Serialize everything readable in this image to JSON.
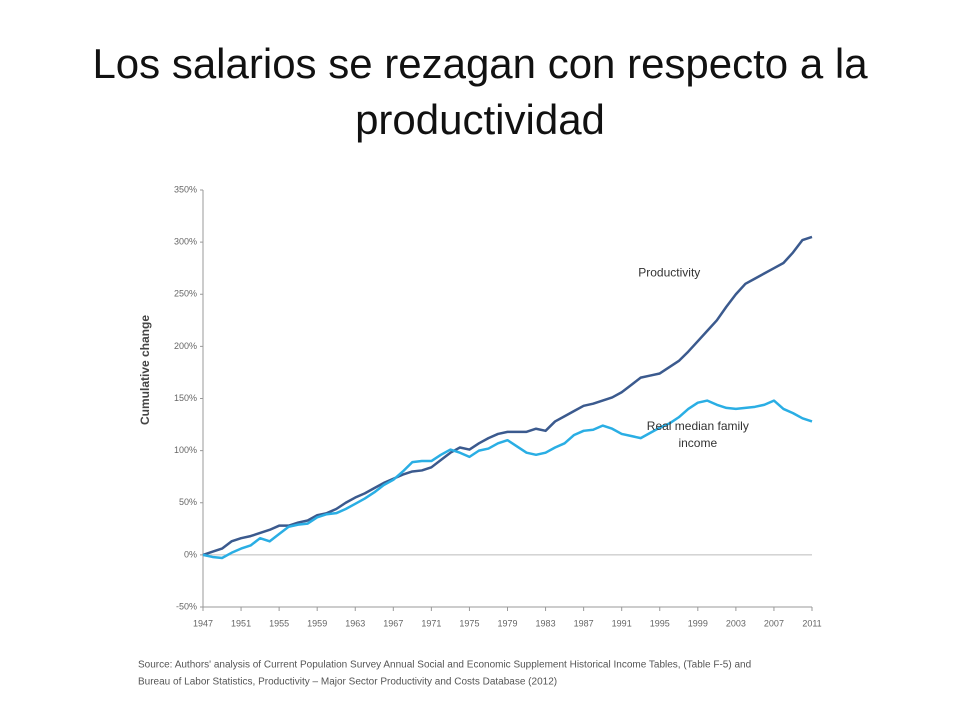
{
  "chart_data": {
    "type": "line",
    "title": "Los salarios se rezagan con respecto a la productividad",
    "y_label": "Cumulative change",
    "x": [
      1947,
      1948,
      1949,
      1950,
      1951,
      1952,
      1953,
      1954,
      1955,
      1956,
      1957,
      1958,
      1959,
      1960,
      1961,
      1962,
      1963,
      1964,
      1965,
      1966,
      1967,
      1968,
      1969,
      1970,
      1971,
      1972,
      1973,
      1974,
      1975,
      1976,
      1977,
      1978,
      1979,
      1980,
      1981,
      1982,
      1983,
      1984,
      1985,
      1986,
      1987,
      1988,
      1989,
      1990,
      1991,
      1992,
      1993,
      1994,
      1995,
      1996,
      1997,
      1998,
      1999,
      2000,
      2001,
      2002,
      2003,
      2004,
      2005,
      2006,
      2007,
      2008,
      2009,
      2010,
      2011
    ],
    "series": [
      {
        "name": "Productivity",
        "color": "#3b5a8e",
        "values": [
          0,
          3,
          6,
          13,
          16,
          18,
          21,
          24,
          28,
          28,
          31,
          33,
          38,
          40,
          44,
          50,
          55,
          59,
          64,
          69,
          73,
          77,
          80,
          81,
          84,
          91,
          98,
          103,
          101,
          107,
          112,
          116,
          118,
          118,
          118,
          121,
          119,
          128,
          133,
          138,
          143,
          145,
          148,
          151,
          156,
          163,
          170,
          172,
          174,
          180,
          186,
          195,
          205,
          215,
          225,
          238,
          250,
          260,
          265,
          270,
          275,
          280,
          290,
          302,
          305
        ]
      },
      {
        "name": "Real median family income",
        "color": "#2aaee4",
        "values": [
          0,
          -2,
          -3,
          2,
          6,
          9,
          16,
          13,
          20,
          27,
          29,
          30,
          36,
          39,
          40,
          44,
          49,
          54,
          60,
          67,
          72,
          80,
          89,
          90,
          90,
          96,
          101,
          98,
          94,
          100,
          102,
          107,
          110,
          104,
          98,
          96,
          98,
          103,
          107,
          115,
          119,
          120,
          124,
          121,
          116,
          114,
          112,
          117,
          122,
          126,
          132,
          140,
          146,
          148,
          144,
          141,
          140,
          141,
          142,
          144,
          148,
          140,
          136,
          131,
          128
        ]
      }
    ],
    "annotations": [
      {
        "lines": [
          "Productivity"
        ],
        "x": 1996,
        "y": 270
      },
      {
        "lines": [
          "Real median family",
          "income"
        ],
        "x": 1999,
        "y": 123
      }
    ],
    "xlim": [
      1947,
      2011
    ],
    "xticks": [
      1947,
      1951,
      1955,
      1959,
      1963,
      1967,
      1971,
      1975,
      1979,
      1983,
      1987,
      1991,
      1995,
      1999,
      2003,
      2007,
      2011
    ],
    "ylim": [
      -50,
      350
    ],
    "yticks": [
      {
        "value": 350,
        "label": "350%"
      },
      {
        "value": 300,
        "label": "300%"
      },
      {
        "value": 250,
        "label": "250%"
      },
      {
        "value": 200,
        "label": "200%"
      },
      {
        "value": 150,
        "label": "150%"
      },
      {
        "value": 100,
        "label": "100%"
      },
      {
        "value": 50,
        "label": "50%"
      },
      {
        "value": 0,
        "label": "0%"
      },
      {
        "value": -50,
        "label": "-50%"
      }
    ],
    "source": [
      "Source:  Authors' analysis of Current Population Survey Annual Social and Economic Supplement Historical Income Tables, (Table F-5) and",
      "Bureau of Labor Statistics, Productivity – Major Sector Productivity and Costs Database (2012)"
    ]
  }
}
